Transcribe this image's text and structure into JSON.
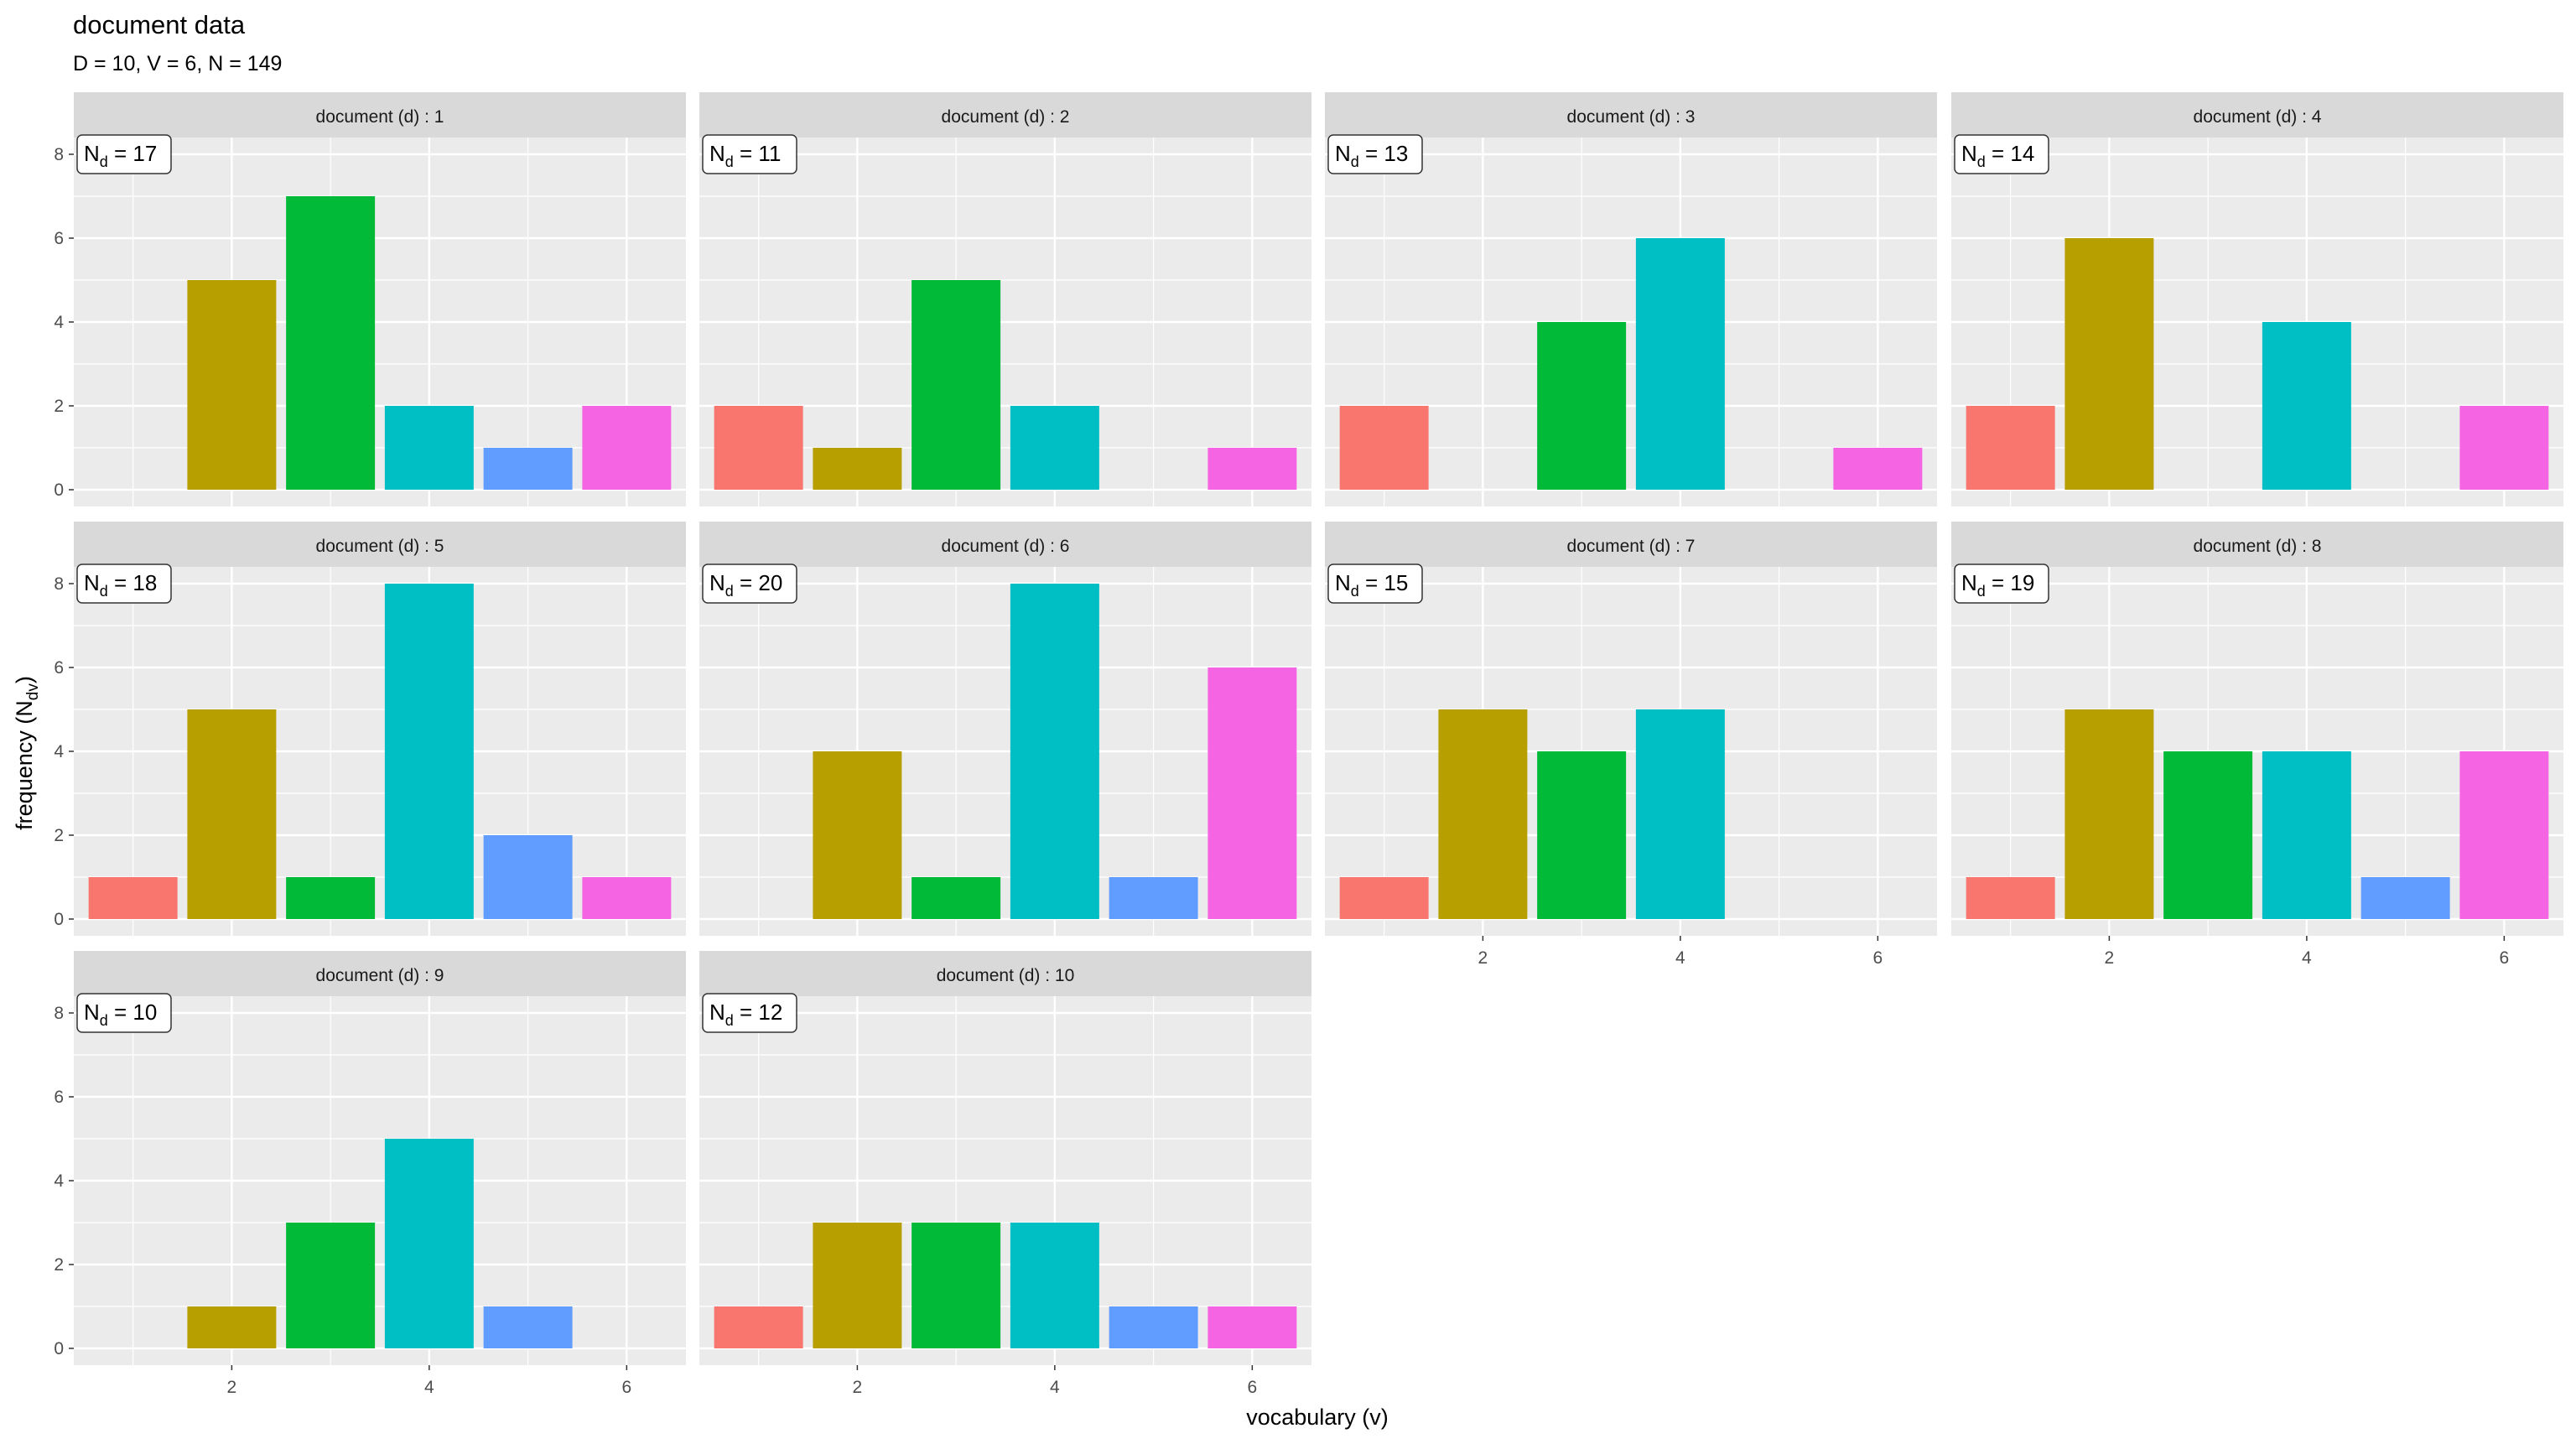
{
  "chart_data": {
    "type": "bar",
    "title": "document data",
    "subtitle": "D = 10, V = 6, N = 149",
    "xlabel": "vocabulary (v)",
    "ylabel": {
      "main": "frequency (N",
      "sub": "dv",
      "close": ")"
    },
    "x_categories": [
      1,
      2,
      3,
      4,
      5,
      6
    ],
    "xlim": [
      0.4,
      6.6
    ],
    "ylim": [
      -0.4,
      8.4
    ],
    "x_ticks": [
      2,
      4,
      6
    ],
    "y_ticks": [
      0,
      2,
      4,
      6,
      8
    ],
    "grid": true,
    "legend": "none",
    "colors": [
      "#F8766D",
      "#B79F00",
      "#00BA38",
      "#00BFC4",
      "#619CFF",
      "#F564E3"
    ],
    "panel_layout": {
      "columns": 4,
      "rows": 3
    },
    "panels": [
      {
        "strip": "document (d) : 1",
        "label_main": "N",
        "label_sub": "d",
        "label_rest": " = 17",
        "values": [
          0,
          5,
          7,
          2,
          1,
          2
        ]
      },
      {
        "strip": "document (d) : 2",
        "label_main": "N",
        "label_sub": "d",
        "label_rest": " = 11",
        "values": [
          2,
          1,
          5,
          2,
          0,
          1
        ]
      },
      {
        "strip": "document (d) : 3",
        "label_main": "N",
        "label_sub": "d",
        "label_rest": " = 13",
        "values": [
          2,
          0,
          4,
          6,
          0,
          1
        ]
      },
      {
        "strip": "document (d) : 4",
        "label_main": "N",
        "label_sub": "d",
        "label_rest": " = 14",
        "values": [
          2,
          6,
          0,
          4,
          0,
          2
        ]
      },
      {
        "strip": "document (d) : 5",
        "label_main": "N",
        "label_sub": "d",
        "label_rest": " = 18",
        "values": [
          1,
          5,
          1,
          8,
          2,
          1
        ]
      },
      {
        "strip": "document (d) : 6",
        "label_main": "N",
        "label_sub": "d",
        "label_rest": " = 20",
        "values": [
          0,
          4,
          1,
          8,
          1,
          6
        ]
      },
      {
        "strip": "document (d) : 7",
        "label_main": "N",
        "label_sub": "d",
        "label_rest": " = 15",
        "values": [
          1,
          5,
          4,
          5,
          0,
          0
        ]
      },
      {
        "strip": "document (d) : 8",
        "label_main": "N",
        "label_sub": "d",
        "label_rest": " = 19",
        "values": [
          1,
          5,
          4,
          4,
          1,
          4
        ]
      },
      {
        "strip": "document (d) : 9",
        "label_main": "N",
        "label_sub": "d",
        "label_rest": " = 10",
        "values": [
          0,
          1,
          3,
          5,
          1,
          0
        ]
      },
      {
        "strip": "document (d) : 10",
        "label_main": "N",
        "label_sub": "d",
        "label_rest": " = 12",
        "values": [
          1,
          3,
          3,
          3,
          1,
          1
        ]
      }
    ]
  }
}
